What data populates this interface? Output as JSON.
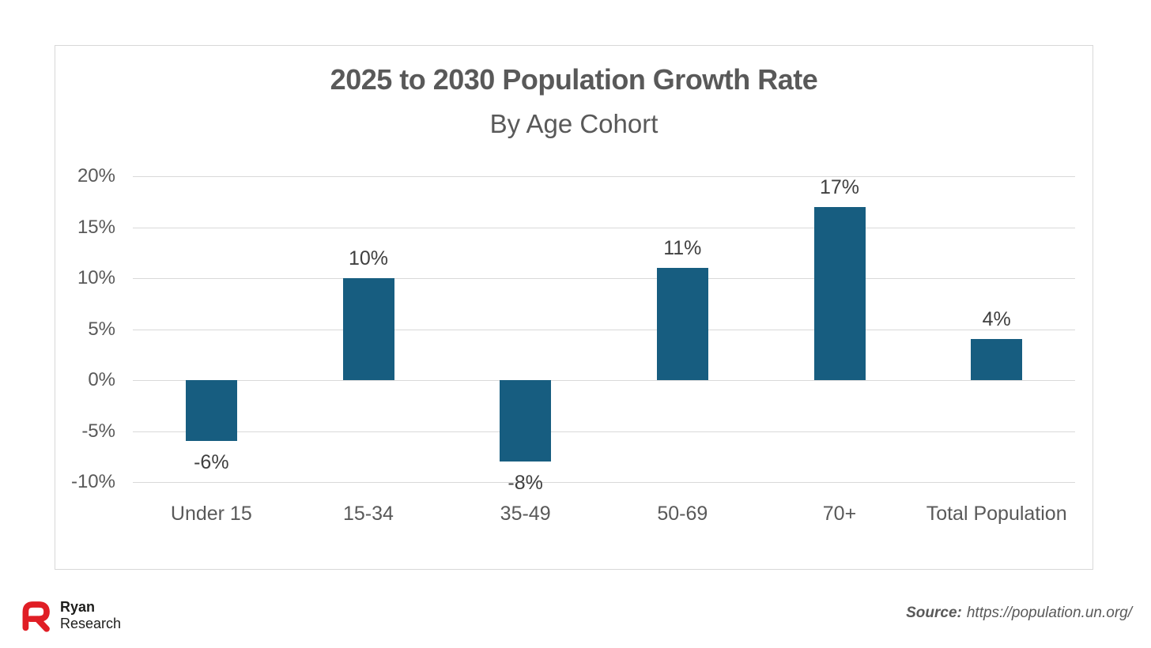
{
  "chart_data": {
    "type": "bar",
    "title": "2025 to 2030 Population Growth Rate",
    "subtitle": "By Age Cohort",
    "categories": [
      "Under 15",
      "15-34",
      "35-49",
      "50-69",
      "70+",
      "Total Population"
    ],
    "values": [
      -6,
      10,
      -8,
      11,
      17,
      4
    ],
    "labels": [
      "-6%",
      "10%",
      "-8%",
      "11%",
      "17%",
      "4%"
    ],
    "y_ticks": [
      20,
      15,
      10,
      5,
      0,
      -5,
      -10
    ],
    "y_tick_labels": [
      "20%",
      "15%",
      "10%",
      "5%",
      "0%",
      "-5%",
      "-10%"
    ],
    "ylim": [
      -10,
      20
    ],
    "grid": true,
    "legend": false,
    "bar_color": "#175D80",
    "grid_color": "#d9d9d9",
    "title_color": "#595959",
    "label_color": "#3f3f3f"
  },
  "footer": {
    "logo_line1": "Ryan",
    "logo_line2": "Research",
    "logo_color": "#E01E25",
    "source_prefix": "Source:",
    "source_rest": "https://population.un.org/"
  }
}
